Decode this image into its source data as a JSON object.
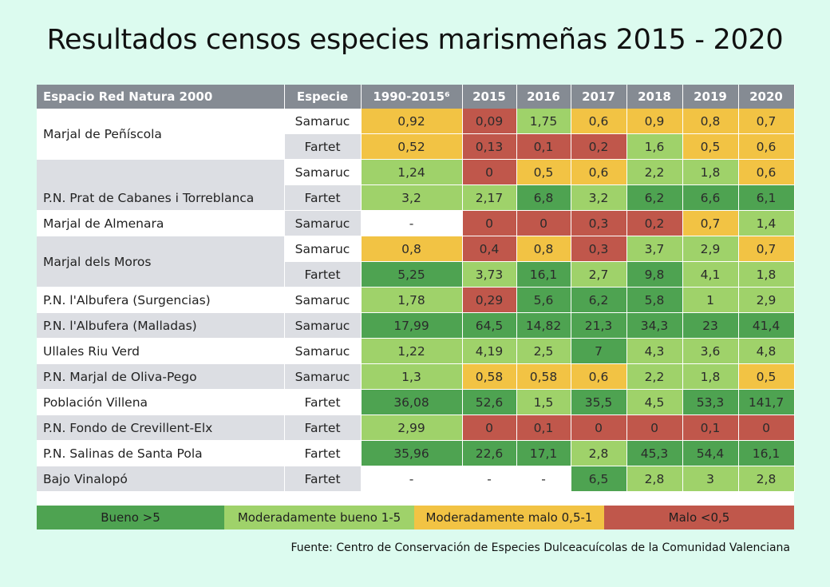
{
  "title": "Resultados censos especies marismeñas 2015 - 2020",
  "colors": {
    "header": "#858b93",
    "bueno": "#4ea351",
    "moderadamente_bueno": "#9fd26a",
    "moderadamente_malo": "#f2c344",
    "malo": "#c0574b",
    "neutral": "#ffffff"
  },
  "table": {
    "headers": [
      "Espacio Red Natura 2000",
      "Especie",
      "1990-2015⁶",
      "2015",
      "2016",
      "2017",
      "2018",
      "2019",
      "2020"
    ],
    "rows": [
      {
        "espacio": "Marjal de Peñíscola",
        "especie": "Samaruc",
        "values": [
          "0,92",
          "0,09",
          "1,75",
          "0,6",
          "0,9",
          "0,8",
          "0,7"
        ],
        "cls": [
          "y",
          "r",
          "l",
          "y",
          "y",
          "y",
          "y"
        ]
      },
      {
        "espacio": "",
        "especie": "Fartet",
        "values": [
          "0,52",
          "0,13",
          "0,1",
          "0,2",
          "1,6",
          "0,5",
          "0,6"
        ],
        "cls": [
          "y",
          "r",
          "r",
          "r",
          "l",
          "y",
          "y"
        ]
      },
      {
        "espacio": "",
        "especie": "Samaruc",
        "values": [
          "1,24",
          "0",
          "0,5",
          "0,6",
          "2,2",
          "1,8",
          "0,6"
        ],
        "cls": [
          "l",
          "r",
          "y",
          "y",
          "l",
          "l",
          "y"
        ]
      },
      {
        "espacio": "P.N. Prat de Cabanes i Torreblanca",
        "especie": "Fartet",
        "values": [
          "3,2",
          "2,17",
          "6,8",
          "3,2",
          "6,2",
          "6,6",
          "6,1"
        ],
        "cls": [
          "l",
          "l",
          "d",
          "l",
          "d",
          "d",
          "d"
        ]
      },
      {
        "espacio": "Marjal de Almenara",
        "especie": "Samaruc",
        "values": [
          "-",
          "0",
          "0",
          "0,3",
          "0,2",
          "0,7",
          "1,4"
        ],
        "cls": [
          "w",
          "r",
          "r",
          "r",
          "r",
          "y",
          "l"
        ]
      },
      {
        "espacio": "Marjal dels Moros",
        "especie": "Samaruc",
        "values": [
          "0,8",
          "0,4",
          "0,8",
          "0,3",
          "3,7",
          "2,9",
          "0,7"
        ],
        "cls": [
          "y",
          "r",
          "y",
          "r",
          "l",
          "l",
          "y"
        ]
      },
      {
        "espacio": "",
        "especie": "Fartet",
        "values": [
          "5,25",
          "3,73",
          "16,1",
          "2,7",
          "9,8",
          "4,1",
          "1,8"
        ],
        "cls": [
          "d",
          "l",
          "d",
          "l",
          "d",
          "l",
          "l"
        ]
      },
      {
        "espacio": "P.N. l'Albufera (Surgencias)",
        "especie": "Samaruc",
        "values": [
          "1,78",
          "0,29",
          "5,6",
          "6,2",
          "5,8",
          "1",
          "2,9"
        ],
        "cls": [
          "l",
          "r",
          "d",
          "d",
          "d",
          "l",
          "l"
        ]
      },
      {
        "espacio": "P.N. l'Albufera (Malladas)",
        "especie": "Samaruc",
        "values": [
          "17,99",
          "64,5",
          "14,82",
          "21,3",
          "34,3",
          "23",
          "41,4"
        ],
        "cls": [
          "d",
          "d",
          "d",
          "d",
          "d",
          "d",
          "d"
        ]
      },
      {
        "espacio": "Ullales Riu Verd",
        "especie": "Samaruc",
        "values": [
          "1,22",
          "4,19",
          "2,5",
          "7",
          "4,3",
          "3,6",
          "4,8"
        ],
        "cls": [
          "l",
          "l",
          "l",
          "d",
          "l",
          "l",
          "l"
        ]
      },
      {
        "espacio": "P.N. Marjal de Oliva-Pego",
        "especie": "Samaruc",
        "values": [
          "1,3",
          "0,58",
          "0,58",
          "0,6",
          "2,2",
          "1,8",
          "0,5"
        ],
        "cls": [
          "l",
          "y",
          "y",
          "y",
          "l",
          "l",
          "y"
        ]
      },
      {
        "espacio": "Población Villena",
        "especie": "Fartet",
        "values": [
          "36,08",
          "52,6",
          "1,5",
          "35,5",
          "4,5",
          "53,3",
          "141,7"
        ],
        "cls": [
          "d",
          "d",
          "l",
          "d",
          "l",
          "d",
          "d"
        ]
      },
      {
        "espacio": "P.N. Fondo de Crevillent-Elx",
        "especie": "Fartet",
        "values": [
          "2,99",
          "0",
          "0,1",
          "0",
          "0",
          "0,1",
          "0"
        ],
        "cls": [
          "l",
          "r",
          "r",
          "r",
          "r",
          "r",
          "r"
        ]
      },
      {
        "espacio": "P.N. Salinas de Santa Pola",
        "especie": "Fartet",
        "values": [
          "35,96",
          "22,6",
          "17,1",
          "2,8",
          "45,3",
          "54,4",
          "16,1"
        ],
        "cls": [
          "d",
          "d",
          "d",
          "l",
          "d",
          "d",
          "d"
        ]
      },
      {
        "espacio": "Bajo Vinalopó",
        "especie": "Fartet",
        "values": [
          "-",
          "-",
          "-",
          "6,5",
          "2,8",
          "3",
          "2,8"
        ],
        "cls": [
          "w",
          "w",
          "w",
          "d",
          "l",
          "l",
          "l"
        ]
      }
    ]
  },
  "legend": [
    {
      "label": "Bueno >5",
      "key": "bueno"
    },
    {
      "label": "Moderadamente bueno 1-5",
      "key": "moderadamente_bueno"
    },
    {
      "label": "Moderadamente malo 0,5-1",
      "key": "moderadamente_malo"
    },
    {
      "label": "Malo <0,5",
      "key": "malo"
    }
  ],
  "source": "Fuente: Centro de Conservación de Especies Dulceacuícolas de la Comunidad Valenciana"
}
